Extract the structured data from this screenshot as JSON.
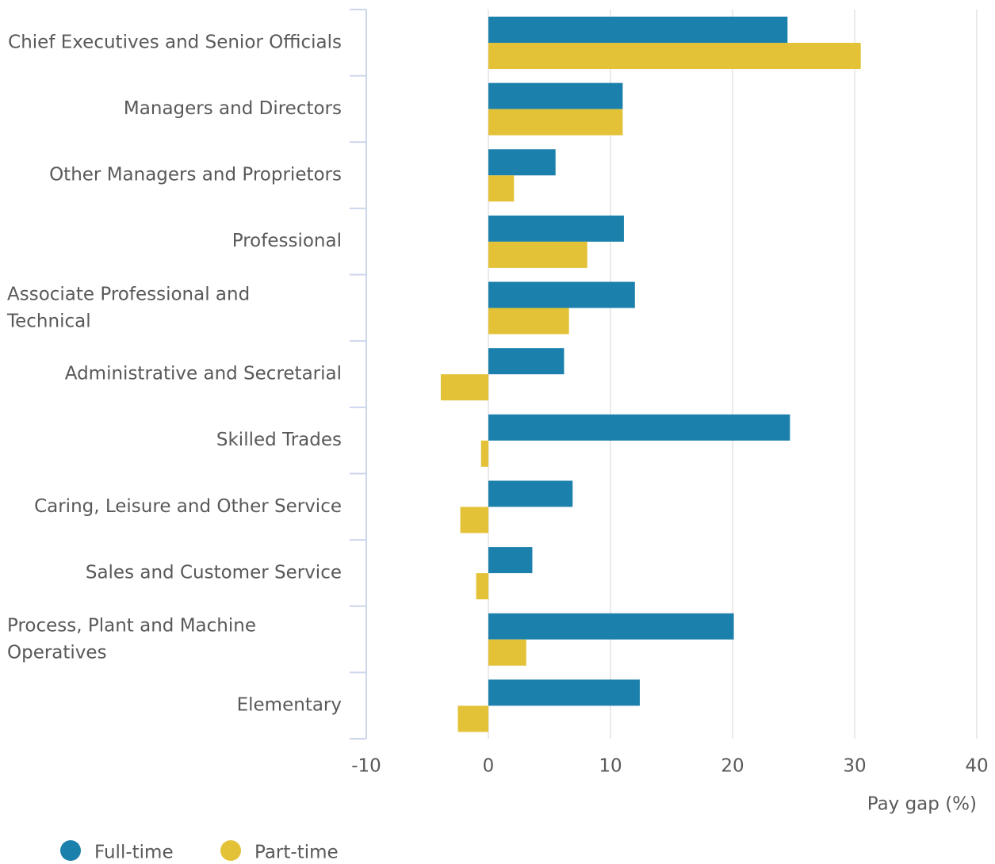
{
  "chart_data": {
    "type": "bar",
    "orientation": "horizontal",
    "categories": [
      "Chief Executives and Senior Officials",
      "Managers and Directors",
      "Other Managers and Proprietors",
      "Professional",
      "Associate Professional and Technical",
      "Administrative and Secretarial",
      "Skilled Trades",
      "Caring, Leisure and Other Service",
      "Sales and Customer Service",
      "Process, Plant and Machine Operatives",
      "Elementary"
    ],
    "series": [
      {
        "name": "Full-time",
        "color": "#1b80ab",
        "values": [
          24.5,
          11.0,
          5.5,
          11.1,
          12.0,
          6.2,
          24.7,
          6.9,
          3.6,
          20.1,
          12.4
        ]
      },
      {
        "name": "Part-time",
        "color": "#e3c237",
        "values": [
          30.5,
          11.0,
          2.1,
          8.1,
          6.6,
          -3.9,
          -0.6,
          -2.3,
          -1.0,
          3.1,
          -2.5
        ]
      }
    ],
    "xlabel": "Pay gap (%)",
    "xlim": [
      -10,
      40
    ],
    "xticks": [
      -10,
      0,
      10,
      20,
      30,
      40
    ],
    "grid": true,
    "legend": "bottom-left"
  }
}
